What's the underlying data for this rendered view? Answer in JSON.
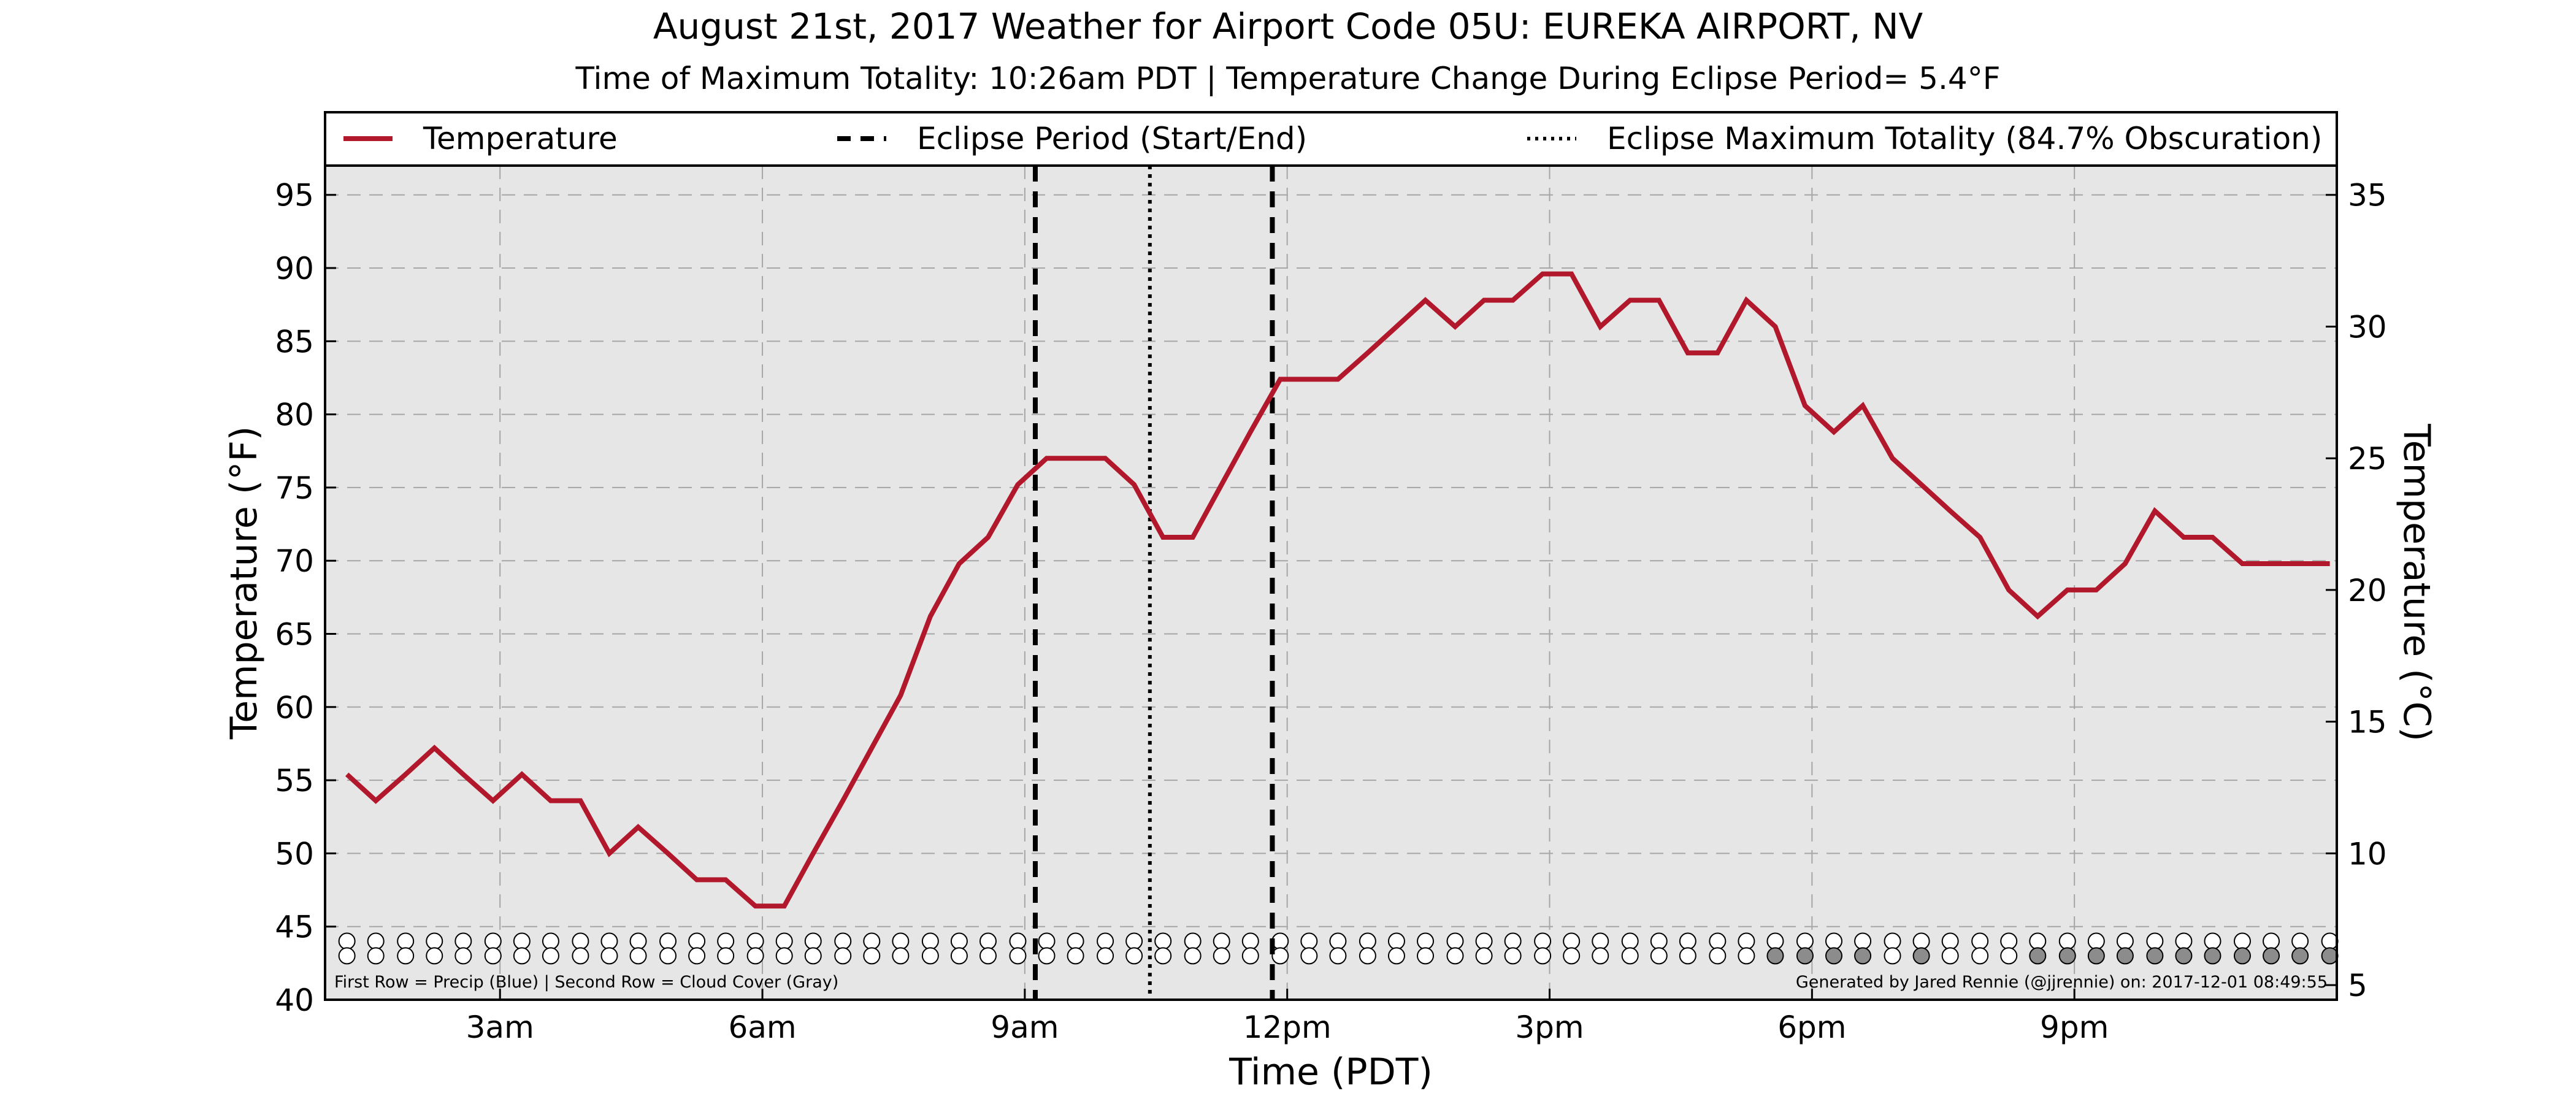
{
  "chart_data": {
    "type": "line",
    "title": "August 21st, 2017 Weather for Airport Code 05U: EUREKA AIRPORT, NV",
    "subtitle": "Time of Maximum Totality: 10:26am PDT | Temperature Change During Eclipse Period= 5.4°F",
    "xlabel": "Time (PDT)",
    "ylabel": "Temperature (°F)",
    "y2label": "Temperature (°C)",
    "x_ticks": [
      {
        "hour": 3,
        "label": "3am"
      },
      {
        "hour": 6,
        "label": "6am"
      },
      {
        "hour": 9,
        "label": "9am"
      },
      {
        "hour": 12,
        "label": "12pm"
      },
      {
        "hour": 15,
        "label": "3pm"
      },
      {
        "hour": 18,
        "label": "6pm"
      },
      {
        "hour": 21,
        "label": "9pm"
      }
    ],
    "xlim": [
      1,
      24
    ],
    "ylim": [
      40,
      97
    ],
    "y_ticks": [
      40,
      45,
      50,
      55,
      60,
      65,
      70,
      75,
      80,
      85,
      90,
      95
    ],
    "y2_ticks": [
      5,
      10,
      15,
      20,
      25,
      30,
      35
    ],
    "grid": true,
    "legend_position": "top",
    "legend": [
      {
        "label": "Temperature",
        "style": "solid"
      },
      {
        "label": "Eclipse Period (Start/End)",
        "style": "dashed"
      },
      {
        "label": "Eclipse Maximum Totality (84.7% Obscuration)",
        "style": "dotted"
      }
    ],
    "series": [
      {
        "name": "Temperature",
        "color": "#b2182b",
        "x": [
          1.25,
          1.58,
          1.92,
          2.25,
          2.58,
          2.92,
          3.25,
          3.58,
          3.92,
          4.25,
          4.58,
          4.92,
          5.25,
          5.58,
          5.92,
          6.25,
          6.58,
          6.92,
          7.25,
          7.58,
          7.92,
          8.25,
          8.58,
          8.92,
          9.25,
          9.58,
          9.92,
          10.25,
          10.58,
          10.92,
          11.25,
          11.58,
          11.92,
          12.25,
          12.58,
          12.92,
          13.25,
          13.58,
          13.92,
          14.25,
          14.58,
          14.92,
          15.25,
          15.58,
          15.92,
          16.25,
          16.58,
          16.92,
          17.25,
          17.58,
          17.92,
          18.25,
          18.58,
          18.92,
          19.25,
          19.58,
          19.92,
          20.25,
          20.58,
          20.92,
          21.25,
          21.58,
          21.92,
          22.25,
          22.58,
          22.92,
          23.25,
          23.58,
          23.92
        ],
        "y": [
          55.4,
          53.6,
          55.4,
          57.2,
          55.4,
          53.6,
          55.4,
          53.6,
          53.6,
          50.0,
          51.8,
          50.0,
          48.2,
          48.2,
          46.4,
          46.4,
          50.0,
          53.6,
          57.2,
          60.8,
          66.2,
          69.8,
          71.6,
          75.2,
          77.0,
          77.0,
          77.0,
          75.2,
          71.6,
          71.6,
          75.2,
          78.8,
          82.4,
          82.4,
          82.4,
          84.2,
          86.0,
          87.8,
          86.0,
          87.8,
          87.8,
          89.6,
          89.6,
          86.0,
          87.8,
          87.8,
          84.2,
          84.2,
          87.8,
          86.0,
          80.6,
          78.8,
          80.6,
          77.0,
          75.2,
          73.4,
          71.6,
          68.0,
          66.2,
          68.0,
          68.0,
          69.8,
          73.4,
          71.6,
          71.6,
          69.8,
          69.8,
          69.8,
          69.8
        ]
      }
    ],
    "eclipse_period": {
      "start_hour": 9.12,
      "end_hour": 11.83
    },
    "max_totality_hour": 10.43,
    "obscuration": "84.7%",
    "cloud_rows": {
      "precip_y": 44.0,
      "cloud_y": 43.0,
      "hours": [
        1.25,
        1.58,
        1.92,
        2.25,
        2.58,
        2.92,
        3.25,
        3.58,
        3.92,
        4.25,
        4.58,
        4.92,
        5.25,
        5.58,
        5.92,
        6.25,
        6.58,
        6.92,
        7.25,
        7.58,
        7.92,
        8.25,
        8.58,
        8.92,
        9.25,
        9.58,
        9.92,
        10.25,
        10.58,
        10.92,
        11.25,
        11.58,
        11.92,
        12.25,
        12.58,
        12.92,
        13.25,
        13.58,
        13.92,
        14.25,
        14.58,
        14.92,
        15.25,
        15.58,
        15.92,
        16.25,
        16.58,
        16.92,
        17.25,
        17.58,
        17.92,
        18.25,
        18.58,
        18.92,
        19.25,
        19.58,
        19.92,
        20.25,
        20.58,
        20.92,
        21.25,
        21.58,
        21.92,
        22.25,
        22.58,
        22.92,
        23.25,
        23.58,
        23.92
      ],
      "cloud_filled_hours": [
        17.58,
        17.92,
        18.25,
        18.58,
        19.25,
        20.58,
        20.92,
        21.25,
        21.58,
        21.92,
        22.25,
        22.58,
        22.92,
        23.25,
        23.58,
        23.92
      ],
      "precip_color": "#ffffff",
      "cloud_color": "#8c8c8c"
    },
    "footer_left": "First Row = Precip (Blue) | Second Row = Cloud Cover (Gray)",
    "footer_right": "Generated by Jared Rennie (@jjrennie) on: 2017-12-01 08:49:55"
  }
}
